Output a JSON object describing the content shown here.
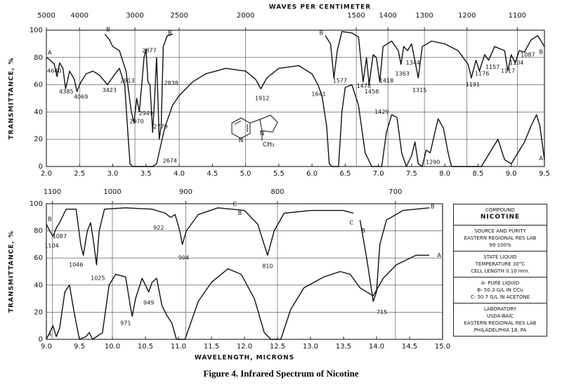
{
  "chart_data": [
    {
      "type": "line",
      "x2label": "WAVES PER CENTIMETER",
      "ylabel": "TRANSMITTANCE, %",
      "xlim": [
        2.0,
        9.5
      ],
      "xticks": [
        {
          "value": 2,
          "label": "2.0"
        },
        2.5,
        {
          "value": 3,
          "label": "3.0"
        },
        3.5,
        {
          "value": 4,
          "label": "4.0"
        },
        4.5,
        {
          "value": 5,
          "label": "5.0"
        },
        5.5,
        {
          "value": 6,
          "label": "6.0"
        },
        6.5,
        {
          "value": 7,
          "label": "7.0"
        },
        7.5,
        {
          "value": 8,
          "label": "8.0"
        },
        8.5,
        {
          "value": 9,
          "label": "9.0"
        },
        9.5
      ],
      "x2ticks": [
        5000,
        4000,
        3000,
        2500,
        2000,
        1500,
        1400,
        1300,
        1200,
        1100
      ],
      "ylim": [
        0,
        100
      ],
      "yticks": [
        0,
        20,
        40,
        60,
        80,
        100
      ],
      "grid": true,
      "series": [
        {
          "name": "A",
          "color": "#111111",
          "x": [
            2.0,
            2.06,
            2.12,
            2.16,
            2.2,
            2.25,
            2.29,
            2.35,
            2.42,
            2.46,
            2.52,
            2.6,
            2.7,
            2.8,
            2.92,
            3.02,
            3.1,
            3.18,
            3.22,
            3.26,
            3.3,
            3.6,
            3.66,
            3.72,
            3.78,
            3.9,
            4.0,
            4.2,
            4.4,
            4.7,
            5.0,
            5.15,
            5.23,
            5.32,
            5.5,
            5.8,
            6.0,
            6.09,
            6.15,
            6.22,
            6.26,
            6.3,
            6.4,
            6.45,
            6.5,
            6.6,
            6.7,
            6.8,
            6.9,
            7.05,
            7.12,
            7.2,
            7.28,
            7.35,
            7.42,
            7.5,
            7.55,
            7.6,
            7.66,
            7.72,
            7.78,
            7.85,
            7.9,
            7.98,
            8.05,
            8.1,
            8.55,
            8.65,
            8.8,
            8.9,
            9.0,
            9.1,
            9.2,
            9.3,
            9.38,
            9.43,
            9.5
          ],
          "values": [
            80,
            78,
            75,
            66,
            76,
            72,
            57,
            70,
            64,
            55,
            62,
            68,
            70,
            67,
            60,
            67,
            72,
            60,
            30,
            2,
            0,
            0,
            2,
            15,
            28,
            45,
            52,
            62,
            68,
            72,
            70,
            64,
            57,
            65,
            72,
            74,
            68,
            60,
            52,
            30,
            2,
            0,
            0,
            40,
            58,
            60,
            45,
            10,
            0,
            0,
            25,
            38,
            36,
            10,
            0,
            8,
            18,
            2,
            0,
            12,
            10,
            25,
            35,
            28,
            10,
            0,
            0,
            8,
            20,
            5,
            2,
            10,
            18,
            30,
            38,
            30,
            5
          ]
        },
        {
          "name": "B",
          "color": "#111111",
          "x": [
            2.88,
            2.95,
            3.0,
            3.1,
            3.2,
            3.28,
            3.32,
            3.36,
            3.4,
            3.44,
            3.47,
            3.5,
            3.53,
            3.56,
            3.6,
            3.63,
            3.66,
            3.7,
            3.73,
            3.76,
            3.82,
            3.9,
            5.0,
            6.2,
            6.28,
            6.33,
            6.38,
            6.45,
            6.6,
            6.7,
            6.77,
            6.82,
            6.86,
            6.92,
            6.97,
            7.02,
            7.07,
            7.2,
            7.3,
            7.34,
            7.38,
            7.44,
            7.5,
            7.6,
            7.66,
            7.8,
            8.0,
            8.2,
            8.35,
            8.4,
            8.47,
            8.52,
            8.6,
            8.66,
            8.75,
            8.9,
            8.95,
            9.0,
            9.06,
            9.12,
            9.2,
            9.3,
            9.4,
            9.5
          ],
          "values": [
            97,
            93,
            88,
            85,
            70,
            40,
            32,
            50,
            40,
            62,
            80,
            86,
            62,
            60,
            25,
            50,
            80,
            20,
            30,
            88,
            96,
            97,
            null,
            96,
            90,
            65,
            85,
            99,
            98,
            95,
            62,
            80,
            60,
            82,
            80,
            62,
            88,
            92,
            85,
            75,
            88,
            85,
            90,
            65,
            88,
            92,
            90,
            85,
            75,
            65,
            78,
            70,
            82,
            78,
            88,
            85,
            70,
            82,
            76,
            85,
            84,
            93,
            96,
            88
          ]
        }
      ],
      "annotations": [
        {
          "text": "4640",
          "x": 2.12,
          "y": 70
        },
        {
          "text": "4385",
          "x": 2.3,
          "y": 55
        },
        {
          "text": "4069",
          "x": 2.52,
          "y": 51
        },
        {
          "text": "3423",
          "x": 2.95,
          "y": 56
        },
        {
          "text": "2913",
          "x": 3.22,
          "y": 63
        },
        {
          "text": "2877",
          "x": 3.55,
          "y": 85
        },
        {
          "text": "2838",
          "x": 3.88,
          "y": 61
        },
        {
          "text": "2949",
          "x": 3.5,
          "y": 39
        },
        {
          "text": "2970",
          "x": 3.36,
          "y": 33
        },
        {
          "text": "2779",
          "x": 3.72,
          "y": 29
        },
        {
          "text": "2674",
          "x": 3.86,
          "y": 4
        },
        {
          "text": "1912",
          "x": 5.25,
          "y": 50
        },
        {
          "text": "1641",
          "x": 6.1,
          "y": 53
        },
        {
          "text": "1577",
          "x": 6.42,
          "y": 63
        },
        {
          "text": "1478",
          "x": 6.78,
          "y": 59
        },
        {
          "text": "1458",
          "x": 6.9,
          "y": 55
        },
        {
          "text": "1418",
          "x": 7.12,
          "y": 63
        },
        {
          "text": "1429",
          "x": 7.05,
          "y": 40
        },
        {
          "text": "1363",
          "x": 7.36,
          "y": 68
        },
        {
          "text": "1344",
          "x": 7.52,
          "y": 76
        },
        {
          "text": "1315",
          "x": 7.62,
          "y": 56
        },
        {
          "text": "1290",
          "x": 7.82,
          "y": 3
        },
        {
          "text": "1191",
          "x": 8.42,
          "y": 60
        },
        {
          "text": "1176",
          "x": 8.56,
          "y": 68
        },
        {
          "text": "1157",
          "x": 8.72,
          "y": 73
        },
        {
          "text": "1117",
          "x": 8.95,
          "y": 70
        },
        {
          "text": "1104",
          "x": 9.08,
          "y": 76
        },
        {
          "text": "1087",
          "x": 9.25,
          "y": 82
        },
        {
          "text": "B",
          "x": 3.86,
          "y": 98
        },
        {
          "text": "B",
          "x": 6.14,
          "y": 98
        },
        {
          "text": "B",
          "x": 9.45,
          "y": 84
        },
        {
          "text": "A",
          "x": 9.45,
          "y": 6
        }
      ]
    },
    {
      "type": "line",
      "xlabel": "WAVELENGTH, MICRONS",
      "ylabel": "TRANSMITTANCE, %",
      "xlim": [
        9.0,
        15.0
      ],
      "xticks": [
        {
          "value": 9,
          "label": "9.0"
        },
        9.5,
        {
          "value": 10,
          "label": "10.0"
        },
        10.5,
        {
          "value": 11,
          "label": "11.0"
        },
        11.5,
        {
          "value": 12,
          "label": "12.0"
        },
        12.5,
        {
          "value": 13,
          "label": "13.0"
        },
        13.5,
        {
          "value": 14,
          "label": "14.0"
        },
        14.5,
        {
          "value": 15,
          "label": "15.0"
        }
      ],
      "x2ticks": [
        1100,
        1000,
        900,
        800,
        700
      ],
      "ylim": [
        0,
        100
      ],
      "yticks": [
        0,
        20,
        40,
        60,
        80,
        100
      ],
      "grid": true,
      "series": [
        {
          "name": "A",
          "color": "#111111",
          "x": [
            9.0,
            9.05,
            9.1,
            9.15,
            9.2,
            9.28,
            9.35,
            9.42,
            9.5,
            9.6,
            9.65,
            9.7,
            9.85,
            9.95,
            10.05,
            10.2,
            10.27,
            10.3,
            10.35,
            10.45,
            10.52,
            10.55,
            10.6,
            10.67,
            10.75,
            10.82,
            10.9,
            10.97,
            11.1,
            11.3,
            11.5,
            11.75,
            11.95,
            12.15,
            12.3,
            12.4,
            12.55,
            12.7,
            12.9,
            13.2,
            13.45,
            13.6,
            13.75,
            13.95,
            14.1,
            14.3,
            14.6,
            14.8
          ],
          "values": [
            0,
            5,
            10,
            2,
            8,
            35,
            40,
            20,
            0,
            2,
            5,
            0,
            5,
            40,
            48,
            46,
            25,
            17,
            30,
            45,
            38,
            35,
            42,
            45,
            25,
            18,
            12,
            0,
            0,
            28,
            42,
            52,
            48,
            30,
            5,
            0,
            0,
            22,
            38,
            46,
            50,
            48,
            38,
            32,
            45,
            55,
            62,
            62
          ]
        },
        {
          "name": "B",
          "color": "#111111",
          "x": [
            9.0,
            9.05,
            9.1,
            9.15,
            9.2,
            9.3,
            9.45,
            9.52,
            9.56,
            9.62,
            9.67,
            9.72,
            9.76,
            9.8,
            9.88,
            10.2,
            10.6,
            10.8,
            10.88,
            10.95,
            11.02,
            11.06,
            11.12,
            11.3,
            11.6,
            11.8,
            12.9,
            13.75,
            13.85,
            13.95,
            14.0,
            14.05,
            14.15,
            14.4,
            14.8
          ],
          "values": [
            85,
            80,
            76,
            82,
            86,
            96,
            96,
            70,
            62,
            80,
            86,
            70,
            55,
            80,
            96,
            97,
            96,
            93,
            90,
            92,
            80,
            70,
            80,
            92,
            97,
            96,
            null,
            88,
            60,
            28,
            35,
            70,
            88,
            95,
            97
          ]
        },
        {
          "name": "C",
          "color": "#111111",
          "x": [
            11.8,
            12.0,
            12.2,
            12.35,
            12.45,
            12.6,
            13.0,
            13.5,
            13.65
          ],
          "values": [
            96,
            95,
            85,
            62,
            80,
            93,
            95,
            95,
            93
          ]
        }
      ],
      "annotations": [
        {
          "text": "1104",
          "x": 9.08,
          "y": 69
        },
        {
          "text": "1087",
          "x": 9.2,
          "y": 76
        },
        {
          "text": "1046",
          "x": 9.45,
          "y": 55
        },
        {
          "text": "1025",
          "x": 9.78,
          "y": 45
        },
        {
          "text": "922",
          "x": 10.7,
          "y": 82
        },
        {
          "text": "904",
          "x": 11.08,
          "y": 60
        },
        {
          "text": "810",
          "x": 12.35,
          "y": 54
        },
        {
          "text": "715",
          "x": 14.08,
          "y": 20
        },
        {
          "text": "971",
          "x": 10.2,
          "y": 12
        },
        {
          "text": "949",
          "x": 10.55,
          "y": 27
        },
        {
          "text": "B",
          "x": 11.93,
          "y": 93
        },
        {
          "text": "C",
          "x": 13.62,
          "y": 86
        },
        {
          "text": "B",
          "x": 13.8,
          "y": 80
        },
        {
          "text": "B",
          "x": 14.85,
          "y": 98
        },
        {
          "text": "A",
          "x": 14.95,
          "y": 62
        }
      ]
    }
  ],
  "structure": {
    "ring_n": "N",
    "pyrrolidine_n": "N",
    "methyl": "CH₃"
  },
  "info_box": [
    [
      "COMPOUND",
      "NICOTINE"
    ],
    [
      "SOURCE AND PURITY",
      "EASTERN REGIONAL RES LAB",
      "99-100%"
    ],
    [
      "STATE  LIQUID",
      "TEMPERATURE  30°C",
      "CELL LENGTH  0.10 mm."
    ],
    [
      "A- PURE LIQUID",
      "B- 50.3 G/L IN CCl₄",
      "C- 50.7 G/L IN ACETONE"
    ],
    [
      "LABORATORY",
      "USDA-BAIC",
      "EASTERN REGIONAL RES LAB",
      "PHILADELPHIA 18, PA"
    ]
  ],
  "caption": "Figure 4.   Infrared Spectrum of Nicotine"
}
